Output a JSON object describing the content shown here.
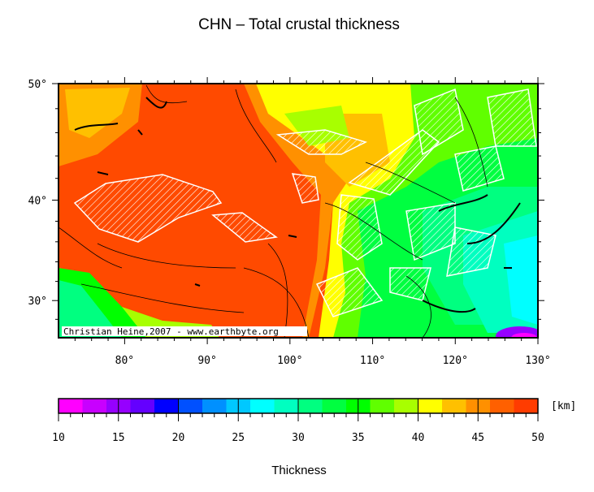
{
  "title": "CHN – Total crustal thickness",
  "map": {
    "projection": "mercator",
    "xlim": [
      72,
      130
    ],
    "ylim": [
      26,
      50
    ],
    "xticks": [
      {
        "value": 80,
        "label": "80°"
      },
      {
        "value": 90,
        "label": "90°"
      },
      {
        "value": 100,
        "label": "100°"
      },
      {
        "value": 110,
        "label": "110°"
      },
      {
        "value": 120,
        "label": "120°"
      },
      {
        "value": 130,
        "label": "130°"
      }
    ],
    "yticks": [
      {
        "value": 30,
        "label": "30°"
      },
      {
        "value": 40,
        "label": "40°"
      },
      {
        "value": 50,
        "label": "50°"
      }
    ],
    "credit": "Christian Heine,2007 - www.earthbyte.org"
  },
  "colorbar": {
    "lim": [
      10,
      50
    ],
    "ticks": [
      10,
      15,
      20,
      25,
      30,
      35,
      40,
      45,
      50
    ],
    "colors": [
      "#ff00ff",
      "#c800ff",
      "#9600ff",
      "#6400ff",
      "#0000ff",
      "#0050ff",
      "#0090ff",
      "#00c8ff",
      "#00ffff",
      "#00ffc0",
      "#00ff80",
      "#00ff40",
      "#00ff00",
      "#60ff00",
      "#a8ff00",
      "#ffff00",
      "#ffc000",
      "#ff9000",
      "#ff6000",
      "#ff3c00"
    ],
    "unit": "[km]",
    "label": "Thickness"
  }
}
